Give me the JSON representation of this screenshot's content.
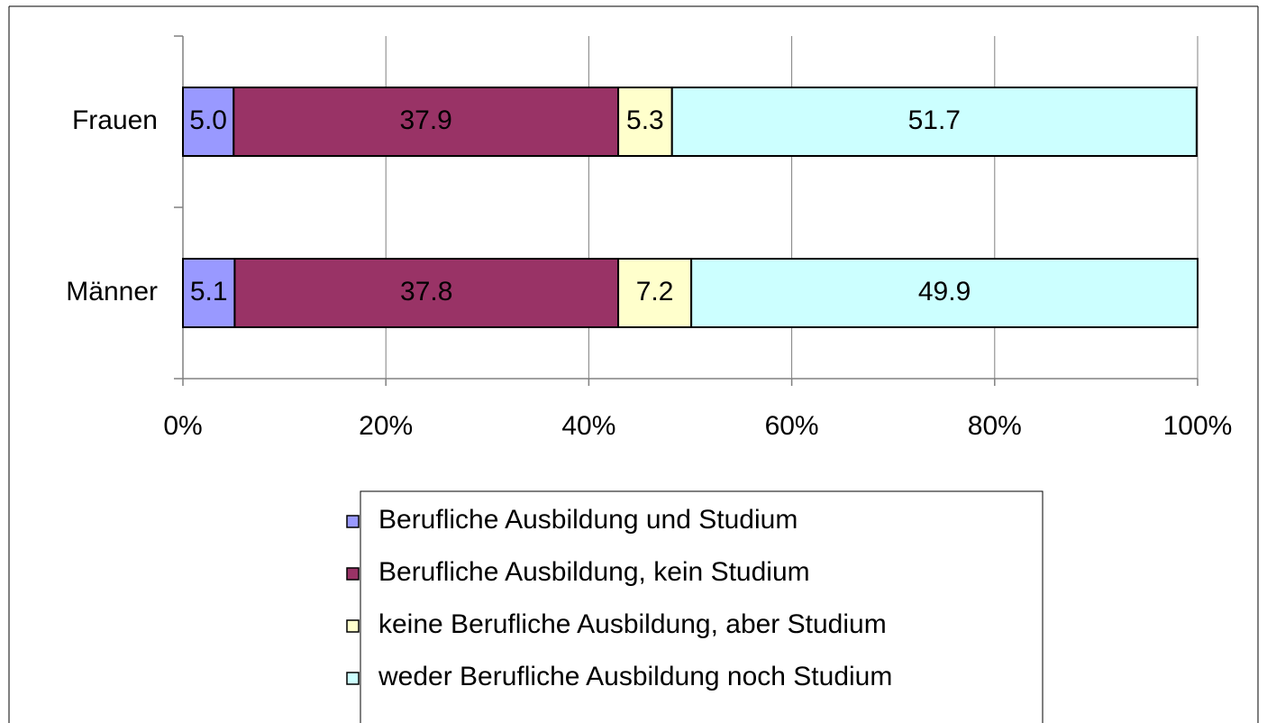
{
  "chart_data": {
    "type": "stacked-bar-horizontal",
    "categories": [
      "Frauen",
      "Männer"
    ],
    "series": [
      {
        "name": "Berufliche Ausbildung und Studium",
        "color": "#9999ff",
        "values": [
          5.0,
          5.1
        ],
        "value_labels": [
          "5.0",
          "5.1"
        ]
      },
      {
        "name": "Berufliche Ausbildung, kein Studium",
        "color": "#993366",
        "values": [
          37.9,
          37.8
        ]
      },
      {
        "name": "keine Berufliche Ausbildung, aber Studium",
        "color": "#ffffcc",
        "values": [
          5.3,
          7.2
        ]
      },
      {
        "name": "weder Berufliche Ausbildung noch Studium",
        "color": "#ccffff",
        "values": [
          51.7,
          49.9
        ]
      }
    ],
    "xlim": [
      0,
      100
    ],
    "xticks": [
      {
        "value": 0,
        "label": "0%"
      },
      {
        "value": 20,
        "label": "20%"
      },
      {
        "value": 40,
        "label": "40%"
      },
      {
        "value": 60,
        "label": "60%"
      },
      {
        "value": 80,
        "label": "80%"
      },
      {
        "value": 100,
        "label": "100%"
      }
    ],
    "grid": true
  }
}
